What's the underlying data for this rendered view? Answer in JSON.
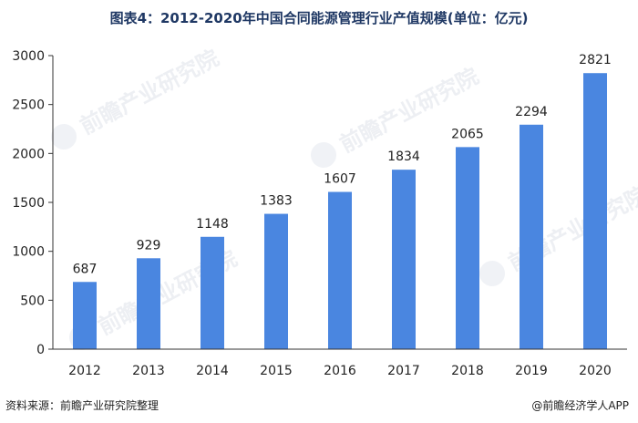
{
  "chart_data": {
    "type": "bar",
    "title": "图表4：2012-2020年中国合同能源管理行业产值规模(单位：亿元)",
    "categories": [
      "2012",
      "2013",
      "2014",
      "2015",
      "2016",
      "2017",
      "2018",
      "2019",
      "2020"
    ],
    "values": [
      687,
      929,
      1148,
      1383,
      1607,
      1834,
      2065,
      2294,
      2821
    ],
    "ylim": [
      0,
      3000
    ],
    "yticks": [
      0,
      500,
      1000,
      1500,
      2000,
      2500,
      3000
    ],
    "bar_color": "#4a86e0",
    "grid": false,
    "legend": "none",
    "data_labels": true
  },
  "footer": {
    "source": "资料来源：前瞻产业研究院整理",
    "credit": "@前瞻经济学人APP"
  },
  "watermark": {
    "text": "前瞻产业研究院",
    "logo": "qianzhan-logo-icon"
  }
}
